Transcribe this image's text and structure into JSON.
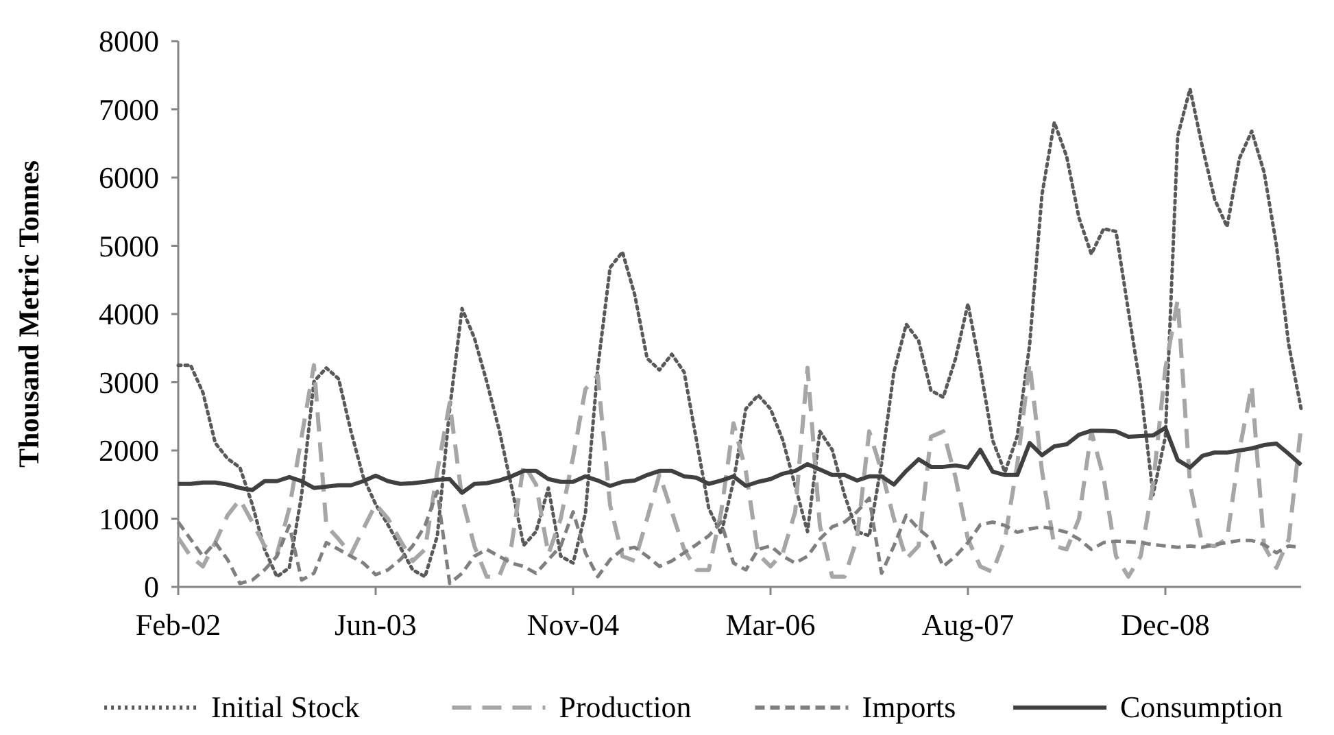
{
  "chart_data": {
    "type": "line",
    "ylabel": "Thousand Metric Tonnes",
    "categories": [
      "Feb-02",
      null,
      null,
      null,
      null,
      null,
      null,
      null,
      null,
      null,
      null,
      null,
      null,
      null,
      null,
      null,
      "Jun-03",
      null,
      null,
      null,
      null,
      null,
      null,
      null,
      null,
      null,
      null,
      null,
      null,
      null,
      null,
      null,
      "Nov-04",
      null,
      null,
      null,
      null,
      null,
      null,
      null,
      null,
      null,
      null,
      null,
      null,
      null,
      null,
      null,
      "Mar-06",
      null,
      null,
      null,
      null,
      null,
      null,
      null,
      null,
      null,
      null,
      null,
      null,
      null,
      null,
      null,
      "Aug-07",
      null,
      null,
      null,
      null,
      null,
      null,
      null,
      null,
      null,
      null,
      null,
      null,
      null,
      null,
      null,
      "Dec-08",
      null,
      null,
      null,
      null,
      null,
      null,
      null,
      null,
      null,
      null,
      null
    ],
    "ylim": [
      0,
      8000
    ],
    "yticks": [
      0,
      1000,
      2000,
      3000,
      4000,
      5000,
      6000,
      7000,
      8000
    ],
    "grid": false,
    "legend": "bottom",
    "series": [
      {
        "name": "Initial Stock",
        "color": "#595959",
        "line_style": "dotted",
        "values": [
          3250,
          3250,
          2850,
          2110,
          1880,
          1750,
          1210,
          550,
          150,
          280,
          1350,
          3010,
          3210,
          3050,
          2280,
          1610,
          1210,
          910,
          580,
          250,
          150,
          750,
          2610,
          4080,
          3650,
          3010,
          2310,
          1480,
          610,
          810,
          1450,
          450,
          350,
          1080,
          3210,
          4680,
          4910,
          4280,
          3350,
          3180,
          3410,
          3150,
          2150,
          1150,
          780,
          1550,
          2610,
          2810,
          2610,
          2150,
          1480,
          810,
          2280,
          2010,
          1350,
          810,
          750,
          1810,
          3150,
          3850,
          3610,
          2880,
          2780,
          3350,
          4150,
          3210,
          2150,
          1680,
          2210,
          3550,
          5750,
          6810,
          6310,
          5410,
          4880,
          5250,
          5210,
          4050,
          2910,
          1350,
          2200,
          6610,
          7300,
          6450,
          5680,
          5280,
          6280,
          6680,
          6080,
          5010,
          3550,
          2610
        ]
      },
      {
        "name": "Production",
        "color": "#a6a6a6",
        "line_style": "dashed",
        "values": [
          720,
          450,
          300,
          650,
          1050,
          1280,
          950,
          600,
          480,
          1150,
          2200,
          3250,
          900,
          700,
          480,
          850,
          1210,
          1000,
          680,
          380,
          550,
          1700,
          2700,
          1300,
          600,
          150,
          150,
          600,
          1800,
          1500,
          480,
          1000,
          1900,
          2900,
          3100,
          1200,
          450,
          380,
          1000,
          1650,
          1100,
          550,
          250,
          250,
          1100,
          2400,
          1700,
          480,
          300,
          500,
          1100,
          3210,
          900,
          150,
          150,
          700,
          2280,
          1700,
          1000,
          410,
          600,
          2200,
          2280,
          1600,
          700,
          300,
          220,
          700,
          1800,
          3280,
          1700,
          600,
          550,
          1000,
          2280,
          1600,
          450,
          150,
          450,
          1500,
          3200,
          4210,
          1500,
          620,
          600,
          700,
          2000,
          2950,
          600,
          280,
          700,
          2350
        ]
      },
      {
        "name": "Imports",
        "color": "#7f7f7f",
        "line_style": "dashed",
        "values": [
          950,
          700,
          450,
          650,
          400,
          50,
          100,
          250,
          450,
          900,
          100,
          200,
          650,
          550,
          450,
          350,
          180,
          250,
          400,
          600,
          900,
          1400,
          50,
          200,
          450,
          550,
          450,
          350,
          300,
          200,
          400,
          600,
          1100,
          500,
          150,
          400,
          550,
          580,
          450,
          300,
          380,
          500,
          620,
          750,
          950,
          350,
          250,
          550,
          600,
          450,
          350,
          450,
          700,
          880,
          950,
          1100,
          1300,
          200,
          600,
          1050,
          850,
          700,
          300,
          450,
          650,
          910,
          950,
          900,
          800,
          850,
          880,
          850,
          800,
          700,
          550,
          650,
          670,
          660,
          650,
          620,
          600,
          580,
          600,
          580,
          620,
          650,
          680,
          680,
          620,
          500,
          600,
          580
        ]
      },
      {
        "name": "Consumption",
        "color": "#404040",
        "line_style": "solid",
        "values": [
          1510,
          1510,
          1530,
          1530,
          1500,
          1450,
          1420,
          1550,
          1550,
          1610,
          1550,
          1450,
          1470,
          1490,
          1490,
          1550,
          1630,
          1550,
          1510,
          1520,
          1540,
          1570,
          1580,
          1380,
          1510,
          1520,
          1560,
          1620,
          1700,
          1700,
          1580,
          1540,
          1540,
          1620,
          1560,
          1480,
          1540,
          1560,
          1640,
          1700,
          1700,
          1620,
          1600,
          1510,
          1560,
          1620,
          1480,
          1540,
          1580,
          1660,
          1700,
          1800,
          1720,
          1640,
          1640,
          1560,
          1620,
          1620,
          1500,
          1700,
          1870,
          1760,
          1760,
          1780,
          1750,
          2010,
          1690,
          1640,
          1640,
          2110,
          1930,
          2060,
          2090,
          2230,
          2290,
          2290,
          2280,
          2200,
          2210,
          2220,
          2330,
          1860,
          1750,
          1920,
          1970,
          1970,
          2000,
          2030,
          2080,
          2100,
          1950,
          1790
        ]
      }
    ]
  }
}
